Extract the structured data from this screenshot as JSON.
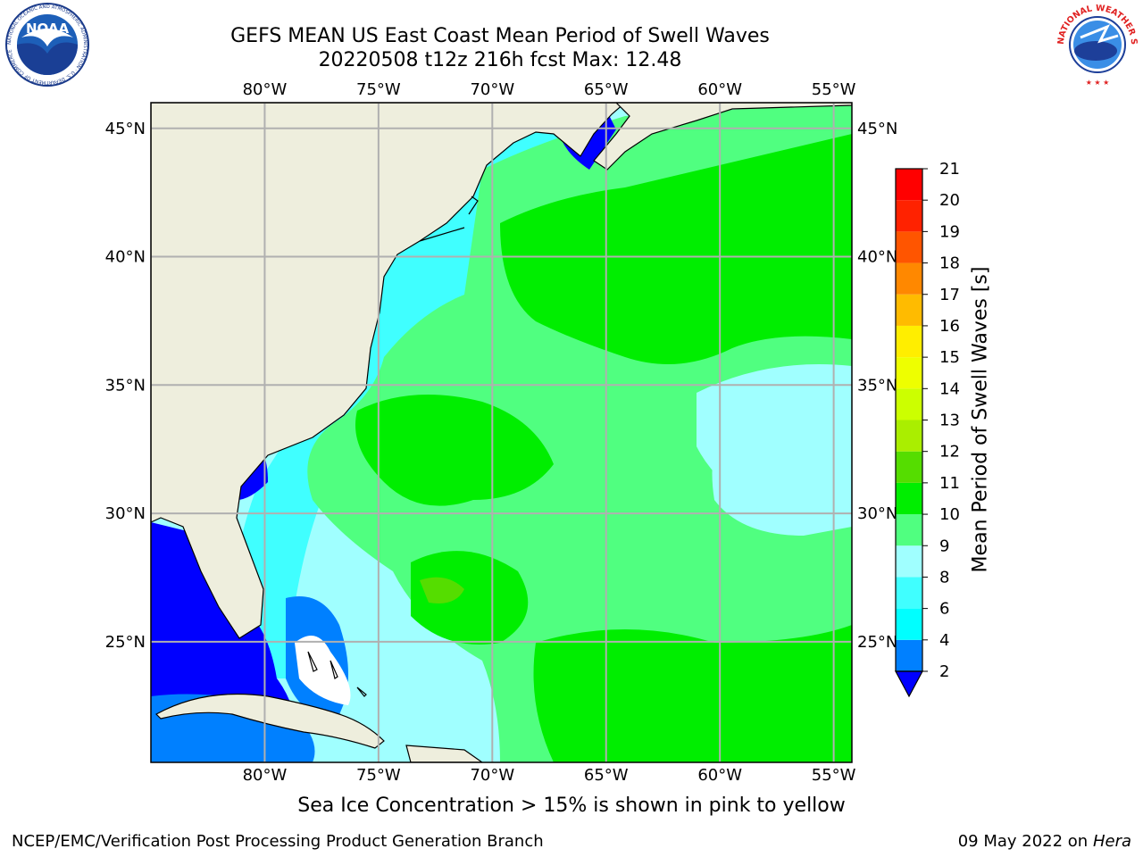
{
  "header": {
    "title_line1": "GEFS MEAN US East Coast Mean Period of Swell Waves",
    "title_line2": "20220508 t12z 216h fcst   Max: 12.48"
  },
  "logos": {
    "left": {
      "name": "NOARA-logo",
      "text": "NOAA",
      "ring_text": "NATIONAL OCEANIC AND ATMOSPHERIC ADMINISTRATION · U.S. DEPARTMENT OF COMMERCE"
    },
    "right": {
      "name": "nws-logo",
      "ring_text": "NATIONAL WEATHER SERVICE"
    }
  },
  "map": {
    "lon_labels": [
      "80°W",
      "75°W",
      "70°W",
      "65°W",
      "60°W",
      "55°W"
    ],
    "lat_labels": [
      "45°N",
      "40°N",
      "35°N",
      "30°N",
      "25°N"
    ],
    "lon_values": [
      -80,
      -75,
      -70,
      -65,
      -60,
      -55
    ],
    "lat_values": [
      45,
      40,
      35,
      30,
      25
    ],
    "lon_range": [
      -85,
      -54.2
    ],
    "lat_range": [
      20.3,
      46
    ],
    "land_color": "#eeeedd",
    "grid_color": "#b0b0b0"
  },
  "colorbar": {
    "label": "Mean Period of Swell Waves [s]",
    "ticks": [
      "21",
      "20",
      "19",
      "18",
      "17",
      "16",
      "15",
      "14",
      "13",
      "12",
      "11",
      "10",
      "9",
      "8",
      "6",
      "4",
      "2"
    ],
    "levels": [
      2,
      4,
      6,
      8,
      9,
      10,
      11,
      12,
      13,
      14,
      15,
      16,
      17,
      18,
      19,
      20,
      21
    ],
    "colors": [
      "#0000ff",
      "#0080ff",
      "#00ffff",
      "#40ffff",
      "#a0ffff",
      "#50ff80",
      "#00ee00",
      "#55dd00",
      "#aaee00",
      "#ccff00",
      "#eeff00",
      "#ffee00",
      "#ffbb00",
      "#ff8800",
      "#ff5500",
      "#ff2200",
      "#ff0000"
    ]
  },
  "notes": {
    "ice": "Sea Ice Concentration > 15% is shown in pink to yellow"
  },
  "footer": {
    "left": "NCEP/EMC/Verification Post Processing Product Generation Branch",
    "date": "09 May 2022 on",
    "host": "Hera"
  }
}
